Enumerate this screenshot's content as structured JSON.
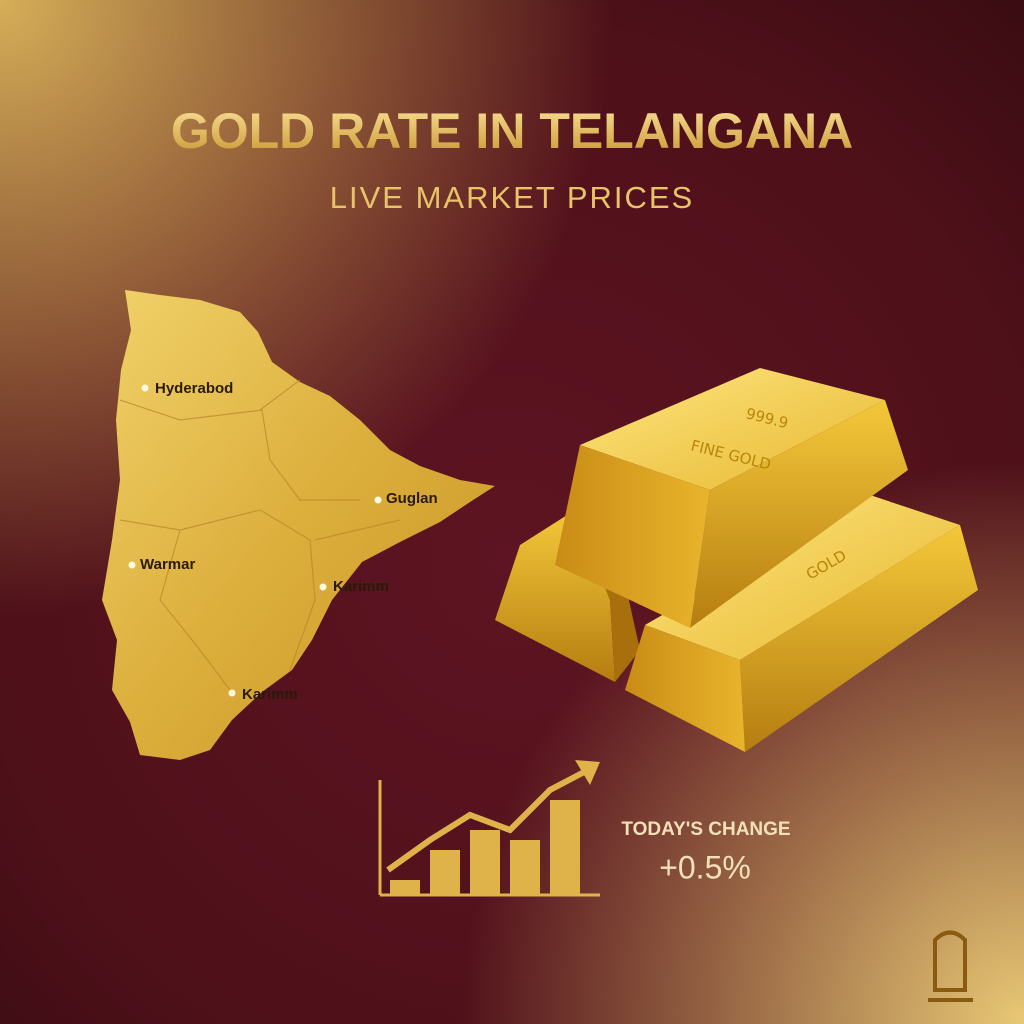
{
  "header": {
    "title": "GOLD RATE IN TELANGANA",
    "subtitle": "LIVE MARKET PRICES"
  },
  "map": {
    "cities": [
      "Hyderabod",
      "Guglan",
      "Warmar",
      "Karimm",
      "Karimm"
    ]
  },
  "gold_bars": {
    "purity": "999.9",
    "label": "FINE GOLD",
    "second_label": "GOLD"
  },
  "change": {
    "label": "TODAY'S CHANGE",
    "value": "+0.5%"
  }
}
